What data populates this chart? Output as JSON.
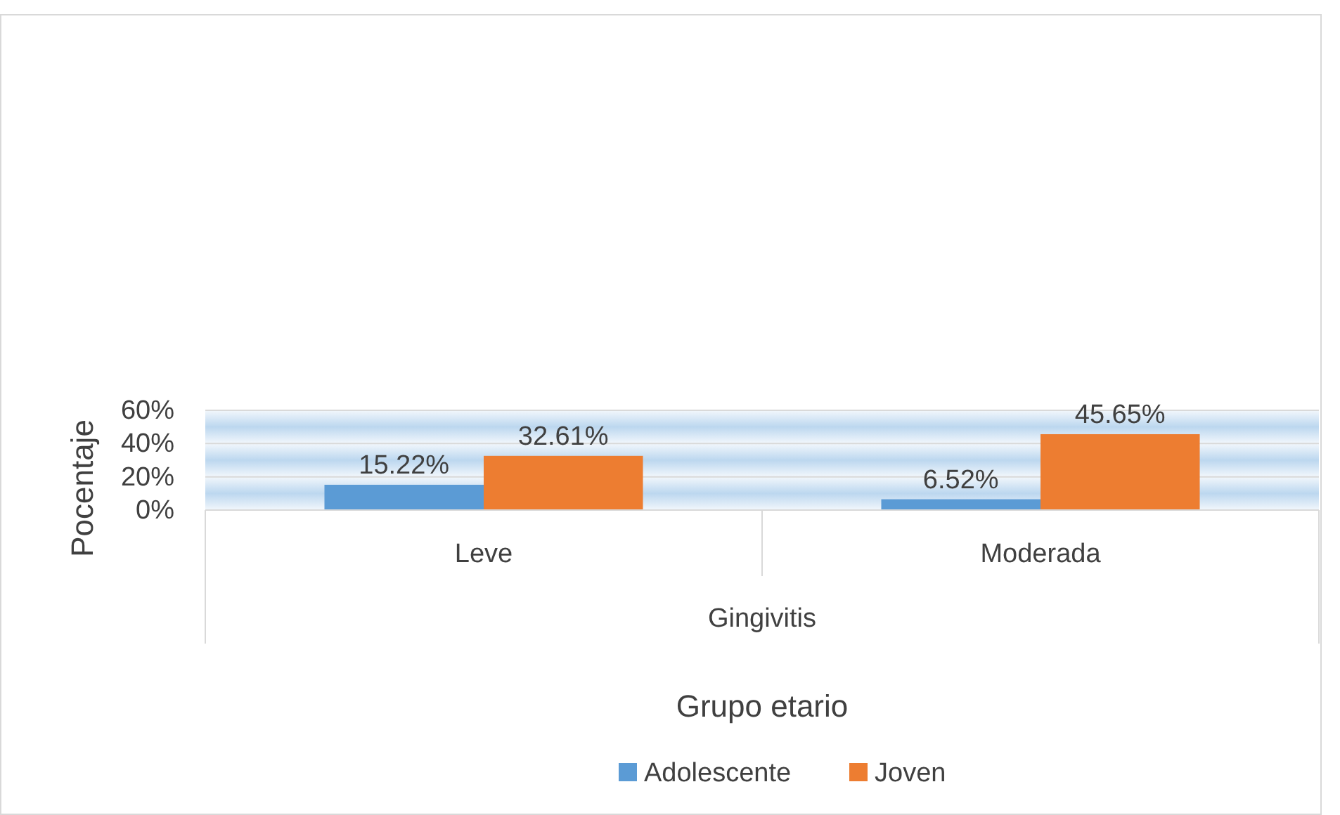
{
  "chart_data": {
    "type": "bar",
    "categories": [
      "Leve",
      "Moderada"
    ],
    "series": [
      {
        "name": "Adolescente",
        "color": "#5b9bd5",
        "values": [
          15.22,
          6.52
        ],
        "value_labels": [
          "15.22%",
          "6.52%"
        ]
      },
      {
        "name": "Joven",
        "color": "#ed7d31",
        "values": [
          32.61,
          45.65
        ],
        "value_labels": [
          "32.61%",
          "45.65%"
        ]
      }
    ],
    "ylim": [
      0,
      60
    ],
    "yticks": [
      {
        "value": 0,
        "label": "0%"
      },
      {
        "value": 20,
        "label": "20%"
      },
      {
        "value": 40,
        "label": "40%"
      },
      {
        "value": 60,
        "label": "60%"
      }
    ],
    "grid": "y",
    "xlabel": "Grupo etario",
    "ylabel": "Pocentaje",
    "annotations": [
      "Gingivitis"
    ],
    "legend": "bottom"
  }
}
